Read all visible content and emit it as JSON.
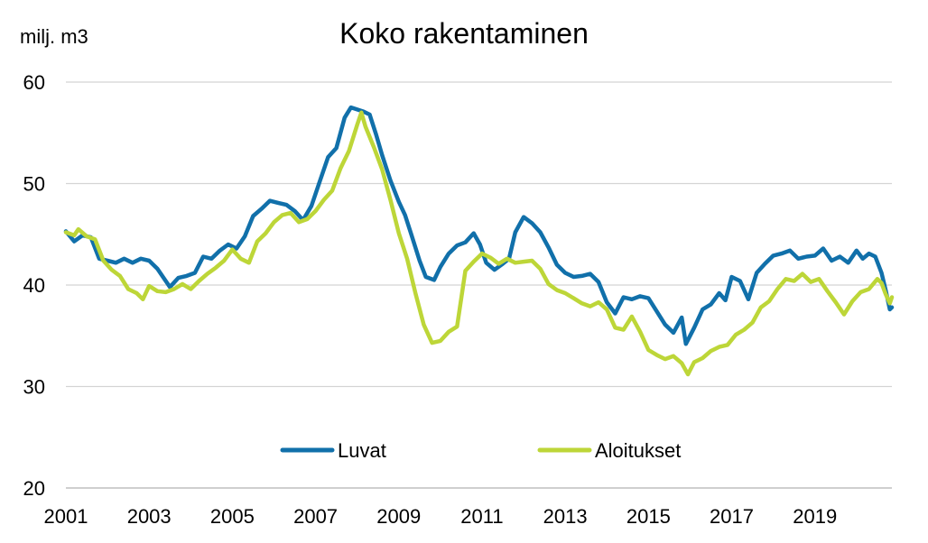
{
  "chart_data": {
    "type": "line",
    "title": "Koko rakentaminen",
    "unit_label": "milj. m3",
    "xlabel": "",
    "ylabel": "",
    "xlim": [
      2001,
      2020.85
    ],
    "ylim": [
      20,
      60
    ],
    "y_ticks": [
      20,
      30,
      40,
      50,
      60
    ],
    "x_ticks": [
      "2001",
      "2003",
      "2005",
      "2007",
      "2009",
      "2011",
      "2013",
      "2015",
      "2017",
      "2019"
    ],
    "grid": "horizontal",
    "legend": {
      "position": "bottom-center"
    },
    "series": [
      {
        "name": "Luvat",
        "color": "#1170aa",
        "points": [
          [
            2001.0,
            45.3
          ],
          [
            2001.2,
            44.3
          ],
          [
            2001.4,
            44.9
          ],
          [
            2001.6,
            44.7
          ],
          [
            2001.8,
            42.6
          ],
          [
            2002.0,
            42.4
          ],
          [
            2002.2,
            42.2
          ],
          [
            2002.4,
            42.6
          ],
          [
            2002.6,
            42.2
          ],
          [
            2002.8,
            42.6
          ],
          [
            2003.0,
            42.4
          ],
          [
            2003.2,
            41.6
          ],
          [
            2003.4,
            40.4
          ],
          [
            2003.5,
            39.8
          ],
          [
            2003.7,
            40.7
          ],
          [
            2003.9,
            40.9
          ],
          [
            2004.1,
            41.2
          ],
          [
            2004.3,
            42.8
          ],
          [
            2004.5,
            42.6
          ],
          [
            2004.7,
            43.4
          ],
          [
            2004.9,
            44.0
          ],
          [
            2005.1,
            43.6
          ],
          [
            2005.3,
            44.8
          ],
          [
            2005.5,
            46.8
          ],
          [
            2005.7,
            47.5
          ],
          [
            2005.9,
            48.3
          ],
          [
            2006.1,
            48.1
          ],
          [
            2006.3,
            47.9
          ],
          [
            2006.5,
            47.3
          ],
          [
            2006.7,
            46.4
          ],
          [
            2006.9,
            47.8
          ],
          [
            2007.1,
            50.2
          ],
          [
            2007.3,
            52.6
          ],
          [
            2007.5,
            53.5
          ],
          [
            2007.7,
            56.5
          ],
          [
            2007.85,
            57.5
          ],
          [
            2008.0,
            57.3
          ],
          [
            2008.15,
            57.1
          ],
          [
            2008.3,
            56.8
          ],
          [
            2008.45,
            54.9
          ],
          [
            2008.6,
            52.8
          ],
          [
            2008.8,
            50.3
          ],
          [
            2009.0,
            48.2
          ],
          [
            2009.15,
            46.9
          ],
          [
            2009.3,
            45.0
          ],
          [
            2009.5,
            42.4
          ],
          [
            2009.65,
            40.8
          ],
          [
            2009.85,
            40.5
          ],
          [
            2010.0,
            41.8
          ],
          [
            2010.2,
            43.1
          ],
          [
            2010.4,
            43.9
          ],
          [
            2010.6,
            44.2
          ],
          [
            2010.8,
            45.1
          ],
          [
            2010.95,
            44.0
          ],
          [
            2011.1,
            42.2
          ],
          [
            2011.3,
            41.5
          ],
          [
            2011.5,
            42.1
          ],
          [
            2011.65,
            42.6
          ],
          [
            2011.8,
            45.2
          ],
          [
            2012.0,
            46.7
          ],
          [
            2012.2,
            46.1
          ],
          [
            2012.4,
            45.2
          ],
          [
            2012.6,
            43.7
          ],
          [
            2012.8,
            42.0
          ],
          [
            2013.0,
            41.2
          ],
          [
            2013.2,
            40.8
          ],
          [
            2013.4,
            40.9
          ],
          [
            2013.6,
            41.1
          ],
          [
            2013.8,
            40.3
          ],
          [
            2014.0,
            38.3
          ],
          [
            2014.2,
            37.2
          ],
          [
            2014.4,
            38.8
          ],
          [
            2014.6,
            38.6
          ],
          [
            2014.8,
            38.9
          ],
          [
            2015.0,
            38.7
          ],
          [
            2015.2,
            37.4
          ],
          [
            2015.4,
            36.1
          ],
          [
            2015.6,
            35.3
          ],
          [
            2015.8,
            36.8
          ],
          [
            2015.9,
            34.2
          ],
          [
            2016.1,
            35.8
          ],
          [
            2016.3,
            37.6
          ],
          [
            2016.5,
            38.1
          ],
          [
            2016.7,
            39.2
          ],
          [
            2016.85,
            38.5
          ],
          [
            2017.0,
            40.8
          ],
          [
            2017.2,
            40.4
          ],
          [
            2017.4,
            38.6
          ],
          [
            2017.6,
            41.2
          ],
          [
            2017.8,
            42.1
          ],
          [
            2018.0,
            42.9
          ],
          [
            2018.2,
            43.1
          ],
          [
            2018.4,
            43.4
          ],
          [
            2018.6,
            42.6
          ],
          [
            2018.8,
            42.8
          ],
          [
            2019.0,
            42.9
          ],
          [
            2019.2,
            43.6
          ],
          [
            2019.4,
            42.4
          ],
          [
            2019.6,
            42.8
          ],
          [
            2019.8,
            42.2
          ],
          [
            2020.0,
            43.4
          ],
          [
            2020.15,
            42.6
          ],
          [
            2020.3,
            43.1
          ],
          [
            2020.45,
            42.8
          ],
          [
            2020.6,
            41.2
          ],
          [
            2020.7,
            39.5
          ],
          [
            2020.8,
            37.6
          ],
          [
            2020.85,
            37.8
          ]
        ]
      },
      {
        "name": "Aloitukset",
        "color": "#bdd638",
        "points": [
          [
            2001.0,
            45.2
          ],
          [
            2001.2,
            44.9
          ],
          [
            2001.3,
            45.5
          ],
          [
            2001.5,
            44.8
          ],
          [
            2001.7,
            44.5
          ],
          [
            2001.9,
            42.4
          ],
          [
            2002.1,
            41.5
          ],
          [
            2002.3,
            40.9
          ],
          [
            2002.5,
            39.6
          ],
          [
            2002.7,
            39.2
          ],
          [
            2002.85,
            38.6
          ],
          [
            2003.0,
            39.9
          ],
          [
            2003.2,
            39.4
          ],
          [
            2003.4,
            39.3
          ],
          [
            2003.6,
            39.6
          ],
          [
            2003.8,
            40.1
          ],
          [
            2004.0,
            39.6
          ],
          [
            2004.2,
            40.4
          ],
          [
            2004.4,
            41.1
          ],
          [
            2004.6,
            41.7
          ],
          [
            2004.8,
            42.4
          ],
          [
            2005.0,
            43.5
          ],
          [
            2005.2,
            42.6
          ],
          [
            2005.4,
            42.2
          ],
          [
            2005.6,
            44.3
          ],
          [
            2005.8,
            45.1
          ],
          [
            2006.0,
            46.2
          ],
          [
            2006.2,
            46.9
          ],
          [
            2006.4,
            47.1
          ],
          [
            2006.6,
            46.2
          ],
          [
            2006.8,
            46.5
          ],
          [
            2007.0,
            47.3
          ],
          [
            2007.2,
            48.4
          ],
          [
            2007.4,
            49.3
          ],
          [
            2007.6,
            51.5
          ],
          [
            2007.8,
            53.2
          ],
          [
            2008.0,
            55.8
          ],
          [
            2008.1,
            57.0
          ],
          [
            2008.2,
            55.6
          ],
          [
            2008.4,
            53.6
          ],
          [
            2008.6,
            51.4
          ],
          [
            2008.8,
            48.4
          ],
          [
            2009.0,
            45.1
          ],
          [
            2009.2,
            42.6
          ],
          [
            2009.4,
            39.2
          ],
          [
            2009.6,
            36.1
          ],
          [
            2009.8,
            34.3
          ],
          [
            2010.0,
            34.5
          ],
          [
            2010.2,
            35.4
          ],
          [
            2010.4,
            35.9
          ],
          [
            2010.6,
            41.4
          ],
          [
            2010.8,
            42.3
          ],
          [
            2011.0,
            43.1
          ],
          [
            2011.2,
            42.7
          ],
          [
            2011.4,
            42.1
          ],
          [
            2011.6,
            42.6
          ],
          [
            2011.8,
            42.2
          ],
          [
            2012.0,
            42.3
          ],
          [
            2012.2,
            42.4
          ],
          [
            2012.4,
            41.6
          ],
          [
            2012.6,
            40.1
          ],
          [
            2012.8,
            39.5
          ],
          [
            2013.0,
            39.2
          ],
          [
            2013.2,
            38.7
          ],
          [
            2013.4,
            38.2
          ],
          [
            2013.6,
            37.9
          ],
          [
            2013.8,
            38.3
          ],
          [
            2014.0,
            37.6
          ],
          [
            2014.2,
            35.8
          ],
          [
            2014.4,
            35.6
          ],
          [
            2014.6,
            36.9
          ],
          [
            2014.8,
            35.4
          ],
          [
            2015.0,
            33.6
          ],
          [
            2015.2,
            33.1
          ],
          [
            2015.4,
            32.7
          ],
          [
            2015.6,
            33.0
          ],
          [
            2015.8,
            32.3
          ],
          [
            2015.95,
            31.2
          ],
          [
            2016.1,
            32.4
          ],
          [
            2016.3,
            32.8
          ],
          [
            2016.5,
            33.5
          ],
          [
            2016.7,
            33.9
          ],
          [
            2016.9,
            34.1
          ],
          [
            2017.1,
            35.1
          ],
          [
            2017.3,
            35.6
          ],
          [
            2017.5,
            36.3
          ],
          [
            2017.7,
            37.8
          ],
          [
            2017.9,
            38.4
          ],
          [
            2018.1,
            39.6
          ],
          [
            2018.3,
            40.6
          ],
          [
            2018.5,
            40.4
          ],
          [
            2018.7,
            41.1
          ],
          [
            2018.9,
            40.3
          ],
          [
            2019.1,
            40.6
          ],
          [
            2019.3,
            39.4
          ],
          [
            2019.5,
            38.3
          ],
          [
            2019.7,
            37.1
          ],
          [
            2019.9,
            38.4
          ],
          [
            2020.1,
            39.3
          ],
          [
            2020.3,
            39.6
          ],
          [
            2020.5,
            40.6
          ],
          [
            2020.6,
            40.2
          ],
          [
            2020.7,
            39.1
          ],
          [
            2020.8,
            38.2
          ],
          [
            2020.85,
            38.8
          ]
        ]
      }
    ]
  }
}
